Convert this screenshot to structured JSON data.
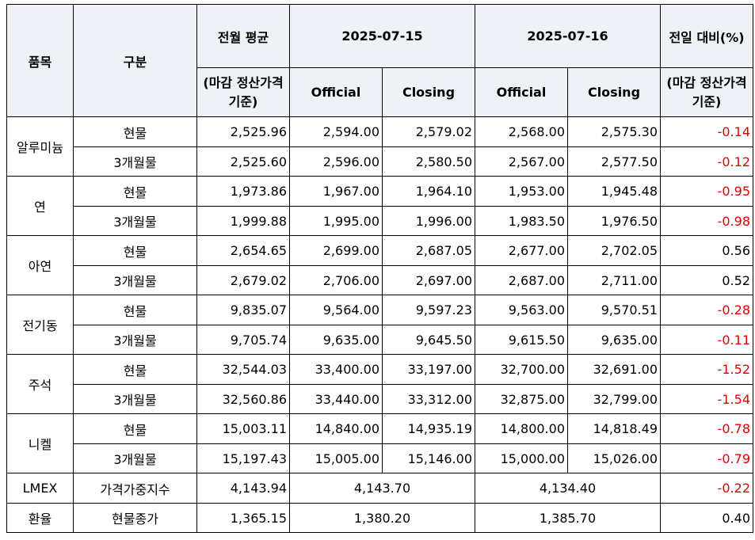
{
  "headers": {
    "item": "품목",
    "category": "구분",
    "prev_month_avg_top": "전월 평균",
    "prev_month_avg_sub": "(마감 정산가격 기준)",
    "date1": "2025-07-15",
    "date2": "2025-07-16",
    "change_top": "전일 대비(%)",
    "change_sub": "(마감 정산가격 기준)",
    "official": "Official",
    "closing": "Closing"
  },
  "groups": [
    {
      "item": "알루미늄",
      "rows": [
        {
          "category": "현물",
          "avg": "2,525.96",
          "d1_official": "2,594.00",
          "d1_closing": "2,579.02",
          "d2_official": "2,568.00",
          "d2_closing": "2,575.30",
          "change": "-0.14"
        },
        {
          "category": "3개월물",
          "avg": "2,525.60",
          "d1_official": "2,596.00",
          "d1_closing": "2,580.50",
          "d2_official": "2,567.00",
          "d2_closing": "2,577.50",
          "change": "-0.12"
        }
      ]
    },
    {
      "item": "연",
      "rows": [
        {
          "category": "현물",
          "avg": "1,973.86",
          "d1_official": "1,967.00",
          "d1_closing": "1,964.10",
          "d2_official": "1,953.00",
          "d2_closing": "1,945.48",
          "change": "-0.95"
        },
        {
          "category": "3개월물",
          "avg": "1,999.88",
          "d1_official": "1,995.00",
          "d1_closing": "1,996.00",
          "d2_official": "1,983.50",
          "d2_closing": "1,976.50",
          "change": "-0.98"
        }
      ]
    },
    {
      "item": "아연",
      "rows": [
        {
          "category": "현물",
          "avg": "2,654.65",
          "d1_official": "2,699.00",
          "d1_closing": "2,687.05",
          "d2_official": "2,677.00",
          "d2_closing": "2,702.05",
          "change": "0.56"
        },
        {
          "category": "3개월물",
          "avg": "2,679.02",
          "d1_official": "2,706.00",
          "d1_closing": "2,697.00",
          "d2_official": "2,687.00",
          "d2_closing": "2,711.00",
          "change": "0.52"
        }
      ]
    },
    {
      "item": "전기동",
      "rows": [
        {
          "category": "현물",
          "avg": "9,835.07",
          "d1_official": "9,564.00",
          "d1_closing": "9,597.23",
          "d2_official": "9,563.00",
          "d2_closing": "9,570.51",
          "change": "-0.28"
        },
        {
          "category": "3개월물",
          "avg": "9,705.74",
          "d1_official": "9,635.00",
          "d1_closing": "9,645.50",
          "d2_official": "9,615.50",
          "d2_closing": "9,635.00",
          "change": "-0.11"
        }
      ]
    },
    {
      "item": "주석",
      "rows": [
        {
          "category": "현물",
          "avg": "32,544.03",
          "d1_official": "33,400.00",
          "d1_closing": "33,197.00",
          "d2_official": "32,700.00",
          "d2_closing": "32,691.00",
          "change": "-1.52"
        },
        {
          "category": "3개월물",
          "avg": "32,560.86",
          "d1_official": "33,440.00",
          "d1_closing": "33,312.00",
          "d2_official": "32,875.00",
          "d2_closing": "32,799.00",
          "change": "-1.54"
        }
      ]
    },
    {
      "item": "니켈",
      "rows": [
        {
          "category": "현물",
          "avg": "15,003.11",
          "d1_official": "14,840.00",
          "d1_closing": "14,935.19",
          "d2_official": "14,800.00",
          "d2_closing": "14,818.49",
          "change": "-0.78"
        },
        {
          "category": "3개월물",
          "avg": "15,197.43",
          "d1_official": "15,005.00",
          "d1_closing": "15,146.00",
          "d2_official": "15,000.00",
          "d2_closing": "15,026.00",
          "change": "-0.79"
        }
      ]
    }
  ],
  "singles": [
    {
      "item": "LMEX",
      "category": "가격가중지수",
      "avg": "4,143.94",
      "d1": "4,143.70",
      "d2": "4,134.40",
      "change": "-0.22"
    },
    {
      "item": "환율",
      "category": "현물종가",
      "avg": "1,365.15",
      "d1": "1,380.20",
      "d2": "1,385.70",
      "change": "0.40"
    }
  ],
  "colors": {
    "header_bg": "#eef2f6",
    "negative": "#e00000"
  }
}
